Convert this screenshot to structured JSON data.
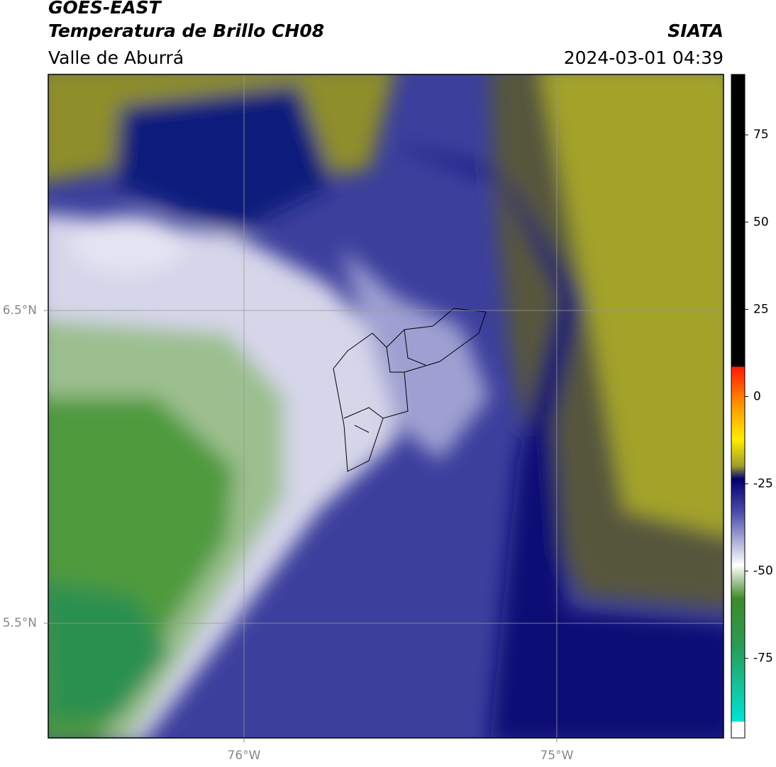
{
  "header": {
    "title": "GOES-EAST",
    "subtitle": "Temperatura de Brillo CH08",
    "region": "Valle de Aburrá",
    "source": "SIATA",
    "datetime": "2024-03-01 04:39"
  },
  "map": {
    "lon_range": [
      -76.626,
      -74.467
    ],
    "lat_range": [
      5.133,
      7.255
    ],
    "lon_ticks": [
      {
        "value": -76,
        "label": "76°W"
      },
      {
        "value": -75,
        "label": "75°W"
      }
    ],
    "lat_ticks": [
      {
        "value": 6.5,
        "label": "6.5°N"
      },
      {
        "value": 5.5,
        "label": "5.5°N"
      }
    ]
  },
  "colorbar": {
    "range": [
      -97.8,
      92.3
    ],
    "ticks": [
      75,
      50,
      25,
      0,
      -25,
      -50,
      -75
    ]
  }
}
